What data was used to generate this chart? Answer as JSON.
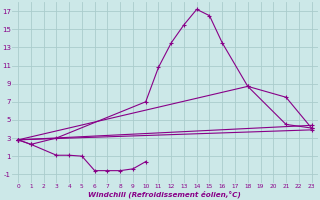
{
  "xlabel": "Windchill (Refroidissement éolien,°C)",
  "bg_color": "#cce8e8",
  "line_color": "#880088",
  "grid_color": "#aacccc",
  "ylim": [
    -2,
    18
  ],
  "xlim": [
    -0.5,
    23.5
  ],
  "yticks": [
    -1,
    1,
    3,
    5,
    7,
    9,
    11,
    13,
    15,
    17
  ],
  "xticks": [
    0,
    1,
    2,
    3,
    4,
    5,
    6,
    7,
    8,
    9,
    10,
    11,
    12,
    13,
    14,
    15,
    16,
    17,
    18,
    19,
    20,
    21,
    22,
    23
  ],
  "line1_x": [
    0,
    1,
    3,
    10,
    11,
    12,
    13,
    14,
    15,
    16,
    18,
    21,
    23
  ],
  "line1_y": [
    2.8,
    2.3,
    3.0,
    7.0,
    10.8,
    13.5,
    15.5,
    17.2,
    16.5,
    13.5,
    8.7,
    4.5,
    4.1
  ],
  "line2_x": [
    0,
    18,
    21,
    23
  ],
  "line2_y": [
    2.8,
    8.7,
    7.5,
    4.1
  ],
  "line3_x": [
    0,
    23
  ],
  "line3_y": [
    2.8,
    4.4
  ],
  "line4_x": [
    0,
    23
  ],
  "line4_y": [
    2.8,
    3.9
  ],
  "line5_x": [
    0,
    1,
    3,
    4,
    5,
    6,
    7,
    8,
    9,
    10
  ],
  "line5_y": [
    2.8,
    2.3,
    1.1,
    1.1,
    1.0,
    -0.6,
    -0.6,
    -0.6,
    -0.4,
    0.4
  ]
}
